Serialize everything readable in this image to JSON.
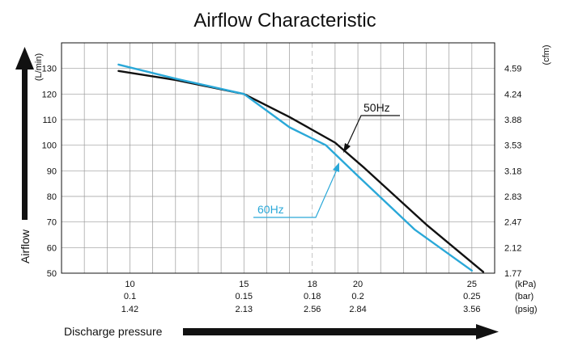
{
  "chart_data": {
    "type": "line",
    "title": "Airflow Characteristic",
    "ylabel": "Airflow",
    "xlabel": "Discharge pressure",
    "y_unit_left": "(L/min)",
    "y_unit_right": "(cfm)",
    "ylim": [
      50,
      140
    ],
    "y_ticks": [
      50,
      60,
      70,
      80,
      90,
      100,
      110,
      120,
      130
    ],
    "y_right_ticks": [
      "1.77",
      "2.12",
      "2.47",
      "2.83",
      "3.18",
      "3.53",
      "3.88",
      "4.24",
      "4.59"
    ],
    "xlim": [
      7,
      26
    ],
    "x_ticks": [
      {
        "kpa": "10",
        "bar": "0.1",
        "psig": "1.42"
      },
      {
        "kpa": "15",
        "bar": "0.15",
        "psig": "2.13"
      },
      {
        "kpa": "18",
        "bar": "0.18",
        "psig": "2.56"
      },
      {
        "kpa": "20",
        "bar": "0.2",
        "psig": "2.84"
      },
      {
        "kpa": "25",
        "bar": "0.25",
        "psig": "3.56"
      }
    ],
    "x_units": [
      "(kPa)",
      "(bar)",
      "(psig)"
    ],
    "grid": true,
    "series": [
      {
        "name": "50Hz",
        "color": "#111111",
        "x": [
          9.5,
          12,
          15,
          17,
          19,
          20.3,
          23,
          25.5
        ],
        "y": [
          129,
          125.5,
          120,
          111,
          101,
          91,
          69,
          50.5
        ]
      },
      {
        "name": "60Hz",
        "color": "#2aa8d8",
        "x": [
          9.5,
          12,
          15,
          17,
          18.6,
          20,
          22.5,
          25
        ],
        "y": [
          131.5,
          126,
          120,
          107,
          100,
          88,
          67,
          51
        ]
      }
    ]
  }
}
